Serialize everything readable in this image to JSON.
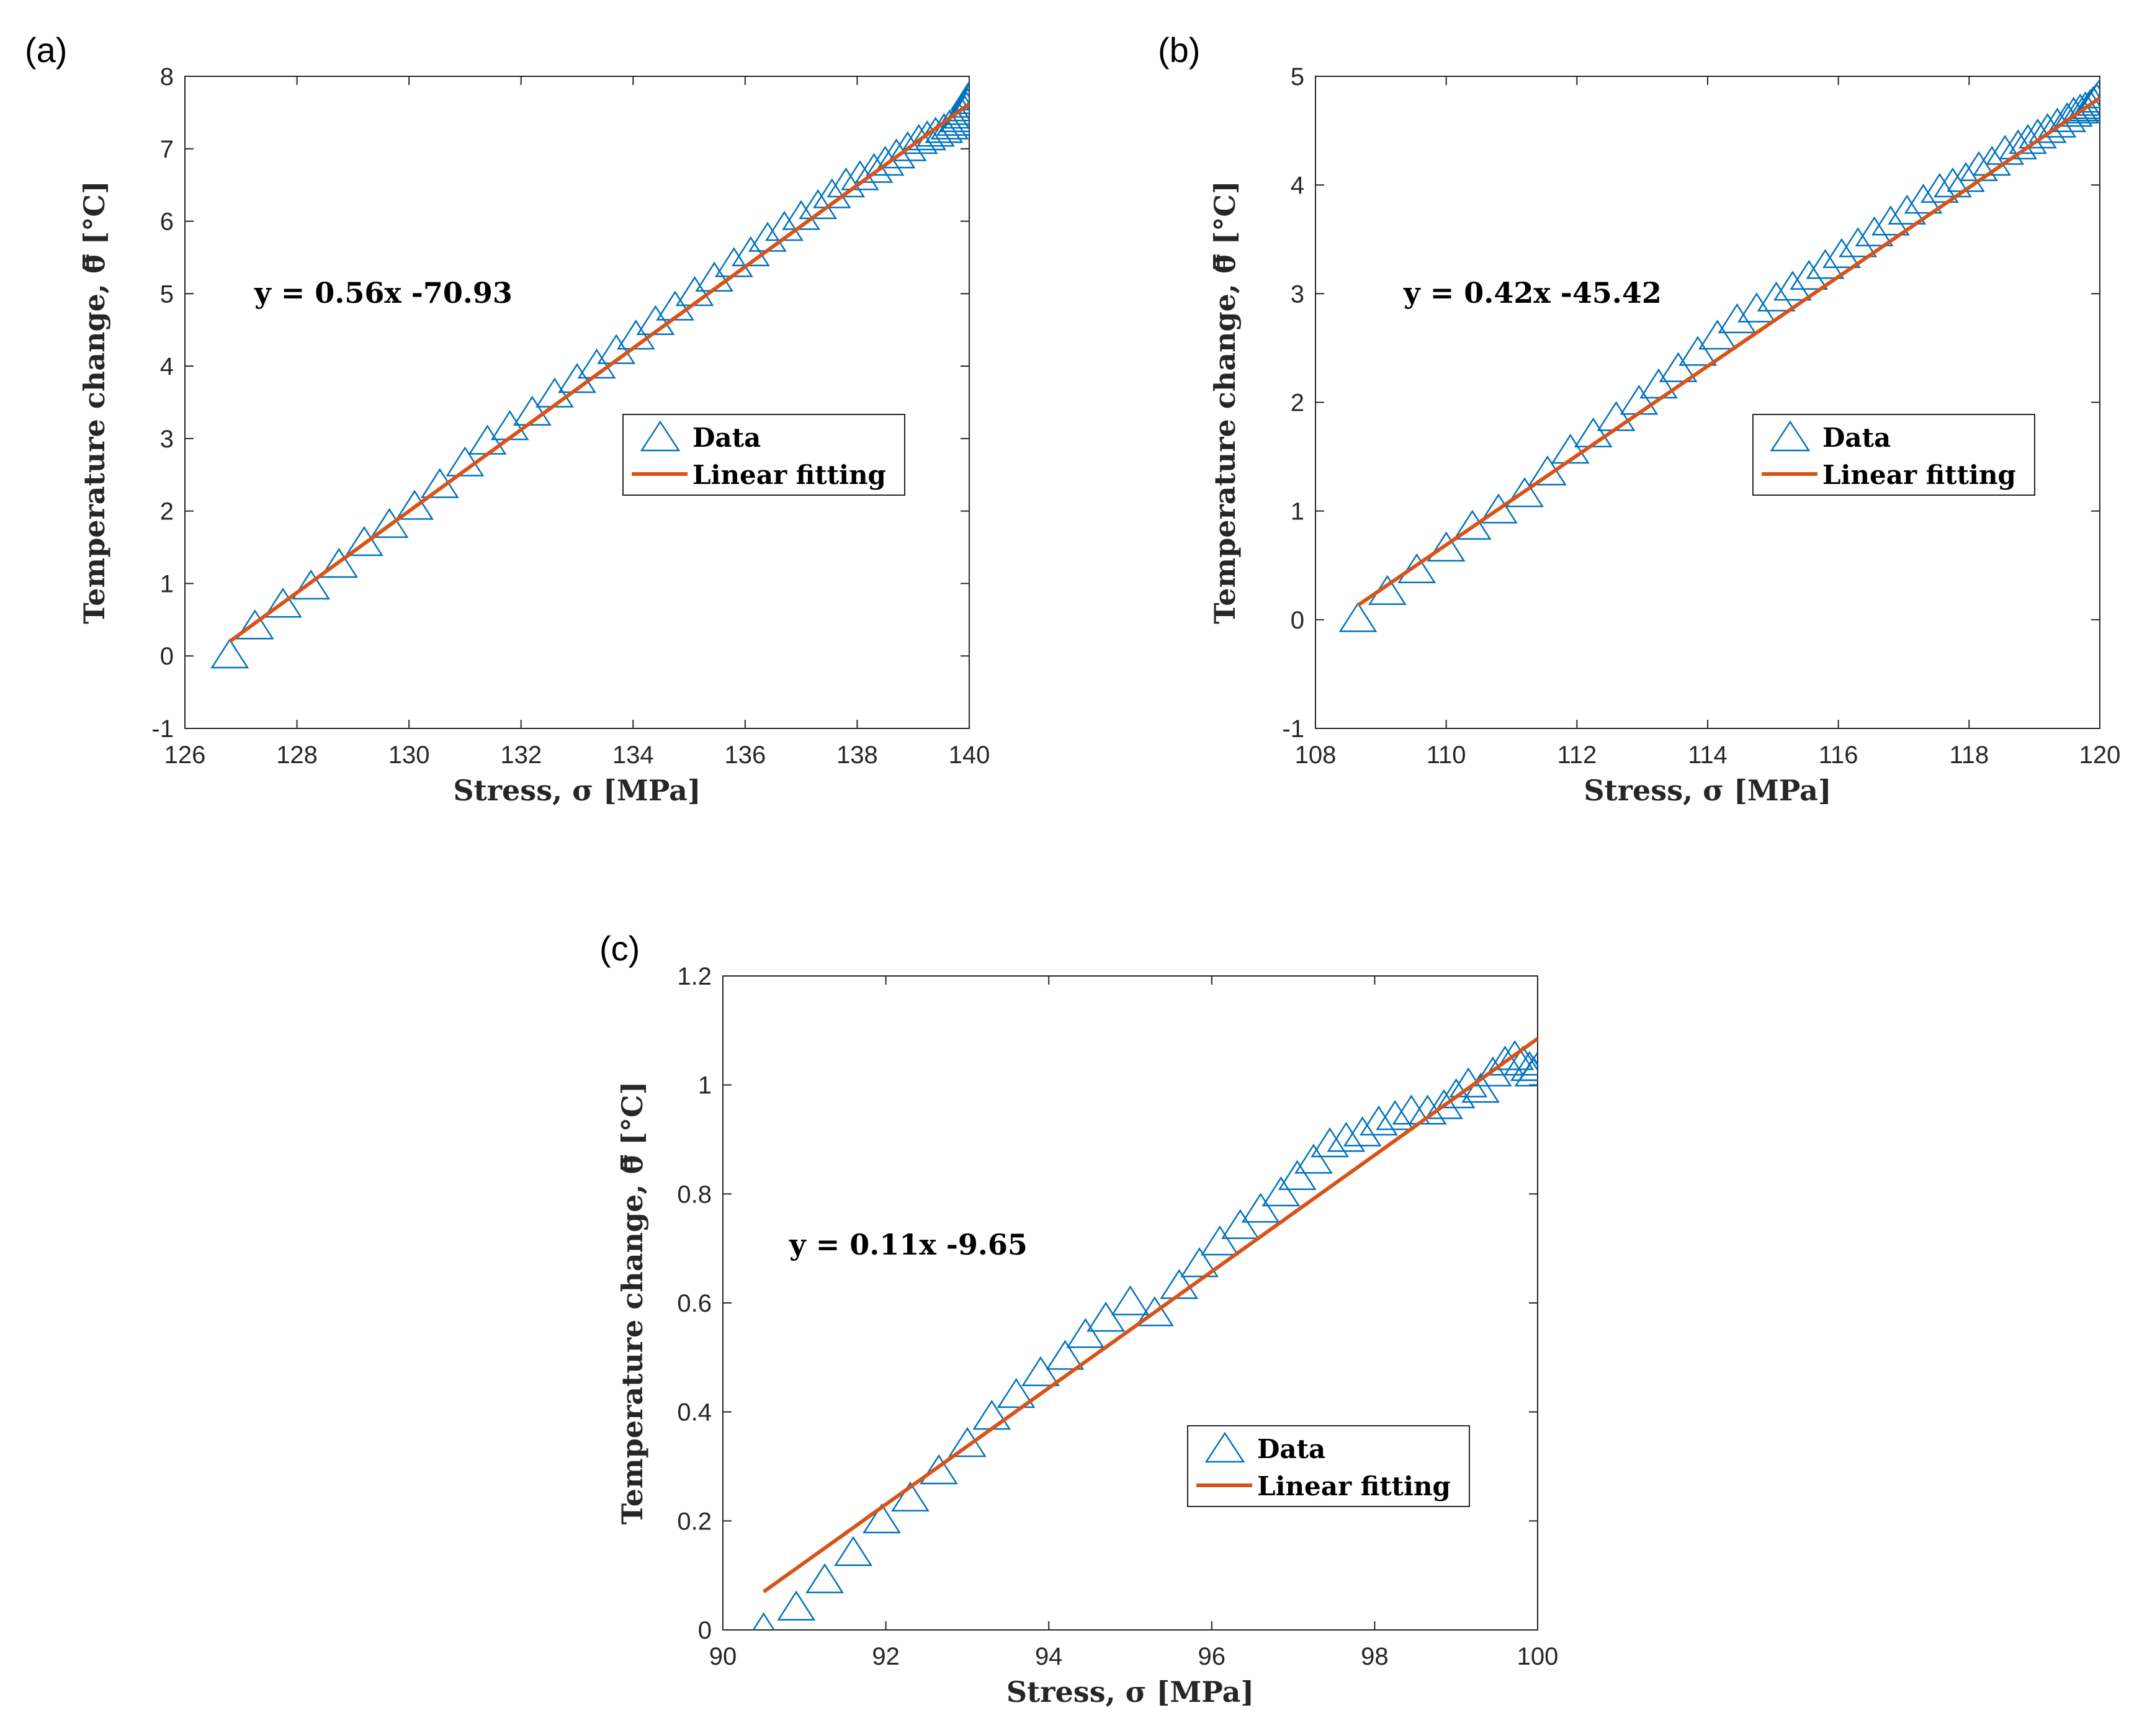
{
  "colors": {
    "data_marker": "#0072BD",
    "fit_line": "#D95319",
    "axis": "#262626",
    "background": "#ffffff"
  },
  "chart_data": [
    {
      "type": "scatter",
      "panel_label": "(a)",
      "xlabel": "Stress, σ [MPa]",
      "ylabel": "Temperature change, θ̿ [°C]",
      "xlim": [
        126,
        140
      ],
      "ylim": [
        -1,
        8
      ],
      "xticks": [
        126,
        128,
        130,
        132,
        134,
        136,
        138,
        140
      ],
      "yticks": [
        -1,
        0,
        1,
        2,
        3,
        4,
        5,
        6,
        7,
        8
      ],
      "equation": "y = 0.56x -70.93",
      "legend": [
        "Data",
        "Linear fitting"
      ],
      "legend_position": "center-right",
      "series": [
        {
          "name": "Data",
          "marker": "triangle",
          "x": [
            126.8,
            127.25,
            127.75,
            128.25,
            128.75,
            129.2,
            129.65,
            130.1,
            130.55,
            131.0,
            131.4,
            131.8,
            132.2,
            132.6,
            133.0,
            133.35,
            133.7,
            134.05,
            134.4,
            134.75,
            135.1,
            135.45,
            135.8,
            136.1,
            136.4,
            136.7,
            137.0,
            137.3,
            137.55,
            137.8,
            138.05,
            138.3,
            138.5,
            138.7,
            138.9,
            139.1,
            139.25,
            139.4,
            139.55,
            139.65,
            139.75,
            139.82,
            139.88,
            139.92,
            139.95,
            139.97,
            139.99,
            140.0
          ],
          "y": [
            0.0,
            0.4,
            0.7,
            0.95,
            1.25,
            1.55,
            1.8,
            2.05,
            2.35,
            2.65,
            2.95,
            3.15,
            3.35,
            3.6,
            3.8,
            4.0,
            4.2,
            4.4,
            4.6,
            4.8,
            5.0,
            5.2,
            5.4,
            5.55,
            5.75,
            5.9,
            6.05,
            6.2,
            6.35,
            6.5,
            6.6,
            6.7,
            6.8,
            6.9,
            7.0,
            7.1,
            7.15,
            7.2,
            7.25,
            7.3,
            7.35,
            7.4,
            7.45,
            7.5,
            7.55,
            7.6,
            7.65,
            7.7
          ]
        },
        {
          "name": "Linear fitting",
          "type": "line",
          "slope": 0.56,
          "intercept": -70.93,
          "x_range": [
            126.8,
            140.0
          ]
        }
      ]
    },
    {
      "type": "scatter",
      "panel_label": "(b)",
      "xlabel": "Stress, σ [MPa]",
      "ylabel": "Temperature change, θ̿ [°C]",
      "xlim": [
        108,
        120
      ],
      "ylim": [
        -1,
        5
      ],
      "xticks": [
        108,
        110,
        112,
        114,
        116,
        118,
        120
      ],
      "yticks": [
        -1,
        0,
        1,
        2,
        3,
        4,
        5
      ],
      "equation": "y = 0.42x -45.42",
      "legend": [
        "Data",
        "Linear fitting"
      ],
      "legend_position": "center-right",
      "series": [
        {
          "name": "Data",
          "marker": "triangle",
          "x": [
            108.65,
            109.1,
            109.55,
            110.0,
            110.4,
            110.8,
            111.2,
            111.55,
            111.9,
            112.25,
            112.6,
            112.95,
            113.25,
            113.55,
            113.85,
            114.15,
            114.45,
            114.75,
            115.05,
            115.3,
            115.55,
            115.8,
            116.05,
            116.3,
            116.55,
            116.8,
            117.05,
            117.3,
            117.55,
            117.75,
            117.95,
            118.15,
            118.35,
            118.55,
            118.75,
            118.9,
            119.05,
            119.2,
            119.35,
            119.5,
            119.6,
            119.7,
            119.78,
            119.85,
            119.9,
            119.95,
            120.0
          ],
          "y": [
            0.0,
            0.25,
            0.45,
            0.65,
            0.85,
            1.0,
            1.15,
            1.35,
            1.55,
            1.7,
            1.85,
            2.0,
            2.15,
            2.3,
            2.45,
            2.6,
            2.75,
            2.85,
            2.95,
            3.05,
            3.15,
            3.25,
            3.35,
            3.45,
            3.55,
            3.65,
            3.75,
            3.85,
            3.95,
            4.0,
            4.05,
            4.15,
            4.2,
            4.3,
            4.35,
            4.4,
            4.45,
            4.5,
            4.55,
            4.6,
            4.65,
            4.68,
            4.7,
            4.72,
            4.75,
            4.78,
            4.82
          ]
        },
        {
          "name": "Linear fitting",
          "type": "line",
          "slope": 0.42,
          "intercept": -45.42,
          "x_range": [
            108.65,
            120.0
          ]
        }
      ]
    },
    {
      "type": "scatter",
      "panel_label": "(c)",
      "xlabel": "Stress, σ [MPa]",
      "ylabel": "Temperature change, θ̿ [°C]",
      "xlim": [
        90,
        100
      ],
      "ylim": [
        0,
        1.2
      ],
      "xticks": [
        90,
        92,
        94,
        96,
        98,
        100
      ],
      "yticks": [
        0,
        0.2,
        0.4,
        0.6,
        0.8,
        1,
        1.2
      ],
      "ytick_labels": [
        "0",
        "0.2",
        "0.4",
        "0.6",
        "0.8",
        "1",
        "1.2"
      ],
      "equation": "y = 0.11x -9.65",
      "legend": [
        "Data",
        "Linear fitting"
      ],
      "legend_position": "lower-right",
      "series": [
        {
          "name": "Data",
          "marker": "triangle",
          "x": [
            90.5,
            90.9,
            91.25,
            91.6,
            91.95,
            92.3,
            92.65,
            93.0,
            93.3,
            93.6,
            93.9,
            94.2,
            94.45,
            94.7,
            95.0,
            95.3,
            95.6,
            95.85,
            96.1,
            96.35,
            96.6,
            96.85,
            97.05,
            97.25,
            97.45,
            97.65,
            97.85,
            98.05,
            98.25,
            98.45,
            98.65,
            98.85,
            99.0,
            99.15,
            99.3,
            99.45,
            99.6,
            99.72,
            99.82,
            99.9,
            99.95,
            100.0
          ],
          "y": [
            0.0,
            0.04,
            0.09,
            0.14,
            0.2,
            0.24,
            0.29,
            0.34,
            0.39,
            0.43,
            0.47,
            0.5,
            0.54,
            0.57,
            0.6,
            0.58,
            0.63,
            0.67,
            0.71,
            0.74,
            0.77,
            0.8,
            0.83,
            0.86,
            0.89,
            0.9,
            0.91,
            0.93,
            0.94,
            0.95,
            0.95,
            0.96,
            0.98,
            1.0,
            0.99,
            1.02,
            1.04,
            1.05,
            1.04,
            1.03,
            1.02,
            1.03
          ]
        },
        {
          "name": "Linear fitting",
          "type": "line",
          "slope": 0.11,
          "intercept": -9.65,
          "x_range": [
            90.5,
            100.0
          ]
        }
      ]
    }
  ]
}
